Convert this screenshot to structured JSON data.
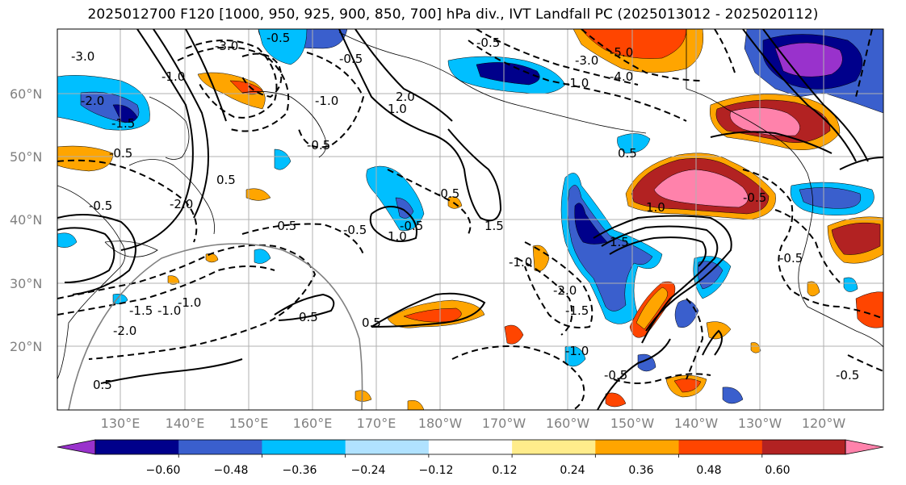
{
  "title": "2025012700 F120 [1000, 950, 925, 900, 850, 700] hPa div., IVT Landfall PC (2025013012 - 2025020112)",
  "map": {
    "lat_labels": [
      "60°N",
      "50°N",
      "40°N",
      "30°N",
      "20°N"
    ],
    "lon_labels": [
      "130°E",
      "140°E",
      "150°E",
      "160°E",
      "170°E",
      "180°W",
      "170°W",
      "160°W",
      "150°W",
      "140°W",
      "130°W",
      "120°W"
    ],
    "contour_labels": [
      "-3.0",
      "-3.0",
      "-1.0",
      "-2.0",
      "-1.5",
      "-0.5",
      "-1.0",
      "-0.5",
      "-0.5",
      "-5.0",
      "-4.0",
      "-3.0",
      "-1.0",
      "-0.5",
      "-2.0",
      "-1.5",
      "-1.0",
      "-0.5",
      "-2.0",
      "-1.5",
      "-1.0",
      "-0.5",
      "-0.5",
      "-0.5",
      "-0.5",
      "-0.5",
      "-0.5",
      "-0.5",
      "0.5",
      "0.5",
      "0.5",
      "0.5",
      "1.0",
      "1.0",
      "1.0",
      "1.5",
      "1.5",
      "2.0",
      "-2.0",
      "-1.0",
      "-1.0",
      "-0.5",
      "-0.5",
      "0.5"
    ]
  },
  "colorbar": {
    "colors": [
      "#9932cc",
      "#00008b",
      "#3a5fcd",
      "#00bfff",
      "#b0e2ff",
      "#ffffff",
      "#ffec8b",
      "#ffa500",
      "#ff4500",
      "#b22222",
      "#ff82ab"
    ],
    "tick_labels": [
      "−0.60",
      "−0.48",
      "−0.36",
      "−0.24",
      "−0.12",
      "0.12",
      "0.24",
      "0.36",
      "0.48",
      "0.60"
    ]
  }
}
